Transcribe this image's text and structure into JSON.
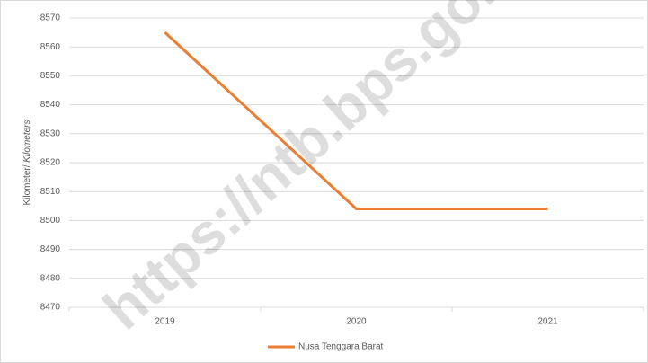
{
  "chart_data": {
    "type": "line",
    "watermark": "https://ntb.bps.go.id",
    "y_label": "Kilometer/",
    "y_label_italic": "Kilometers",
    "categories": [
      "2019",
      "2020",
      "2021"
    ],
    "series": [
      {
        "name": "Nusa Tenggara Barat",
        "color": "#ed7d31",
        "values": [
          8565,
          8504,
          8504
        ]
      }
    ],
    "ylim": [
      8470,
      8570
    ],
    "yticks": [
      8470,
      8480,
      8490,
      8500,
      8510,
      8520,
      8530,
      8540,
      8550,
      8560,
      8570
    ],
    "grid": true,
    "legend": "bottom"
  }
}
